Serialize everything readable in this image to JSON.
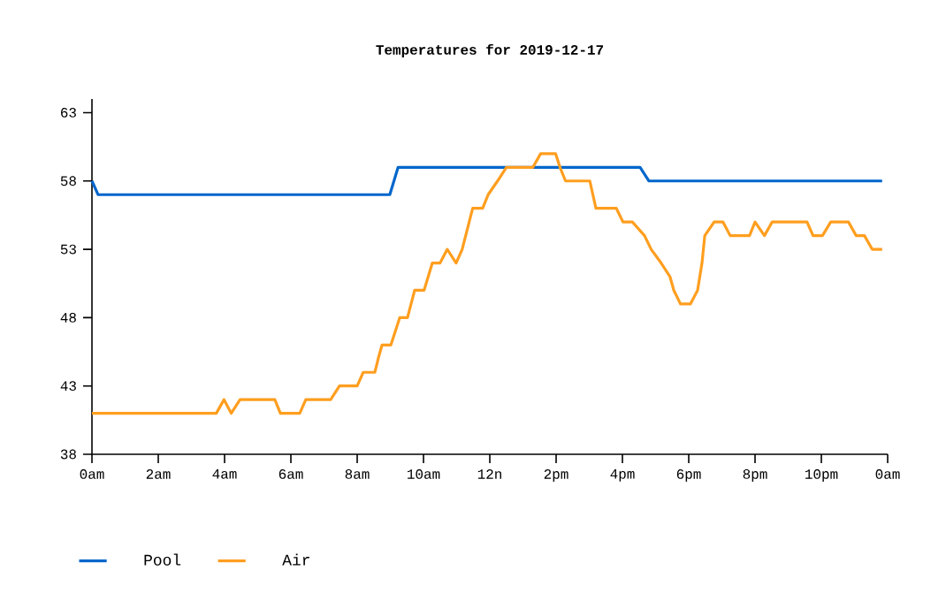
{
  "chart_data": {
    "type": "line",
    "title": "Temperatures for 2019-12-17",
    "xlim": [
      "2019-12-17T00:00",
      "2019-12-18T00:00"
    ],
    "ylim": [
      38,
      64
    ],
    "xticks": [
      {
        "value": "2019-12-17T00:00",
        "label": "0am"
      },
      {
        "value": "2019-12-17T02:00",
        "label": "2am"
      },
      {
        "value": "2019-12-17T04:00",
        "label": "4am"
      },
      {
        "value": "2019-12-17T06:00",
        "label": "6am"
      },
      {
        "value": "2019-12-17T08:00",
        "label": "8am"
      },
      {
        "value": "2019-12-17T10:00",
        "label": "10am"
      },
      {
        "value": "2019-12-17T12:00",
        "label": "12n"
      },
      {
        "value": "2019-12-17T14:00",
        "label": "2pm"
      },
      {
        "value": "2019-12-17T16:00",
        "label": "4pm"
      },
      {
        "value": "2019-12-17T18:00",
        "label": "6pm"
      },
      {
        "value": "2019-12-17T20:00",
        "label": "8pm"
      },
      {
        "value": "2019-12-17T22:00",
        "label": "10pm"
      },
      {
        "value": "2019-12-18T00:00",
        "label": "0am"
      }
    ],
    "yticks": [
      38,
      43,
      48,
      53,
      58,
      63
    ],
    "grid": false,
    "legend": "bottom",
    "marker": "none",
    "line_style": "solid",
    "series": [
      {
        "name": "Pool",
        "color": "#0066cc",
        "x": [
          "2019-12-17T00:00",
          "2019-12-17T00:11",
          "2019-12-17T08:59",
          "2019-12-17T09:14",
          "2019-12-17T16:32",
          "2019-12-17T16:48",
          "2019-12-17T23:50"
        ],
        "values": [
          58,
          57,
          57,
          59,
          59,
          58,
          58
        ]
      },
      {
        "name": "Air",
        "color": "#ff9e1f",
        "x": [
          "2019-12-17T00:00",
          "2019-12-17T03:45",
          "2019-12-17T03:59",
          "2019-12-17T04:12",
          "2019-12-17T04:28",
          "2019-12-17T05:31",
          "2019-12-17T05:41",
          "2019-12-17T06:16",
          "2019-12-17T06:27",
          "2019-12-17T07:12",
          "2019-12-17T07:28",
          "2019-12-17T08:00",
          "2019-12-17T08:11",
          "2019-12-17T08:32",
          "2019-12-17T08:38",
          "2019-12-17T08:45",
          "2019-12-17T09:01",
          "2019-12-17T09:17",
          "2019-12-17T09:31",
          "2019-12-17T09:44",
          "2019-12-17T10:01",
          "2019-12-17T10:16",
          "2019-12-17T10:30",
          "2019-12-17T10:43",
          "2019-12-17T10:59",
          "2019-12-17T11:10",
          "2019-12-17T11:29",
          "2019-12-17T11:47",
          "2019-12-17T11:57",
          "2019-12-17T12:14",
          "2019-12-17T12:30",
          "2019-12-17T13:18",
          "2019-12-17T13:32",
          "2019-12-17T13:59",
          "2019-12-17T14:07",
          "2019-12-17T14:17",
          "2019-12-17T15:01",
          "2019-12-17T15:12",
          "2019-12-17T15:49",
          "2019-12-17T16:01",
          "2019-12-17T16:18",
          "2019-12-17T16:40",
          "2019-12-17T16:52",
          "2019-12-17T17:10",
          "2019-12-17T17:26",
          "2019-12-17T17:33",
          "2019-12-17T17:45",
          "2019-12-17T18:03",
          "2019-12-17T18:16",
          "2019-12-17T18:24",
          "2019-12-17T18:29",
          "2019-12-17T18:46",
          "2019-12-17T19:02",
          "2019-12-17T19:15",
          "2019-12-17T19:50",
          "2019-12-17T20:00",
          "2019-12-17T20:17",
          "2019-12-17T20:31",
          "2019-12-17T21:34",
          "2019-12-17T21:45",
          "2019-12-17T22:02",
          "2019-12-17T22:17",
          "2019-12-17T22:49",
          "2019-12-17T23:03",
          "2019-12-17T23:18",
          "2019-12-17T23:32",
          "2019-12-17T23:50"
        ],
        "values": [
          41,
          41,
          42,
          41,
          42,
          42,
          41,
          41,
          42,
          42,
          43,
          43,
          44,
          44,
          45,
          46,
          46,
          48,
          48,
          50,
          50,
          52,
          52,
          53,
          52,
          53,
          56,
          56,
          57,
          58,
          59,
          59,
          60,
          60,
          59,
          58,
          58,
          56,
          56,
          55,
          55,
          54,
          53,
          52,
          51,
          50,
          49,
          49,
          50,
          52,
          54,
          55,
          55,
          54,
          54,
          55,
          54,
          55,
          55,
          54,
          54,
          55,
          55,
          54,
          54,
          53,
          53
        ]
      }
    ]
  }
}
